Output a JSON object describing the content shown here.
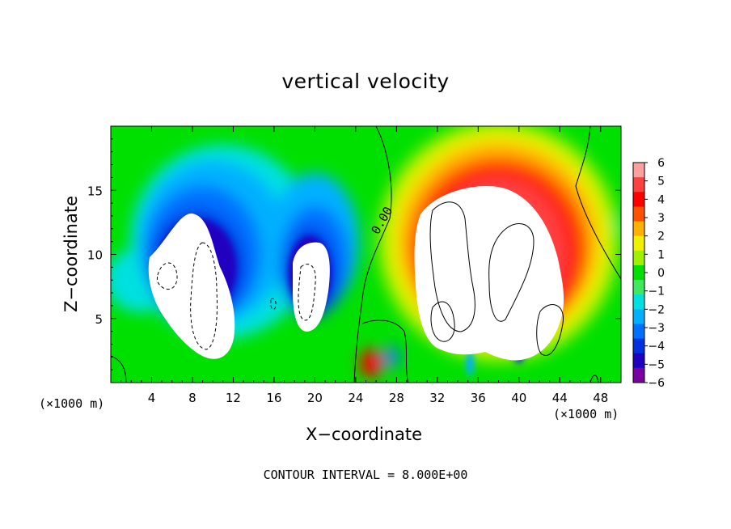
{
  "chart_data": {
    "type": "heatmap",
    "title": "vertical velocity",
    "xlabel": "X−coordinate",
    "ylabel": "Z−coordinate",
    "x_unit_left": "(×1000 m)",
    "x_unit_right": "(×1000 m)",
    "xlim": [
      0,
      50
    ],
    "ylim": [
      0,
      20
    ],
    "x_ticks": [
      4,
      8,
      12,
      16,
      20,
      24,
      28,
      32,
      36,
      40,
      44,
      48
    ],
    "y_ticks": [
      5,
      10,
      15
    ],
    "colorbar": {
      "levels": [
        -6,
        -5,
        -4,
        -3,
        -2,
        -1,
        0,
        1,
        2,
        3,
        4,
        5,
        6
      ],
      "labels": [
        "6",
        "5",
        "4",
        "3",
        "2",
        "1",
        "0",
        "−1",
        "−2",
        "−3",
        "−4",
        "−5",
        "−6"
      ]
    },
    "contour_label": "0.00",
    "contour_note": "CONTOUR INTERVAL = 8.000E+00",
    "features": [
      {
        "kind": "downdraft",
        "x": 8,
        "z": 9,
        "value": -9
      },
      {
        "kind": "downdraft",
        "x": 19,
        "z": 8,
        "value": -8
      },
      {
        "kind": "updraft",
        "x": 38,
        "z": 10,
        "value": 10
      },
      {
        "kind": "updraft",
        "x": 44,
        "z": 5,
        "value": 7
      },
      {
        "kind": "updraft",
        "x": 25.5,
        "z": 1.5,
        "value": 5
      },
      {
        "kind": "downdraft",
        "x": 40,
        "z": 3,
        "value": -5
      }
    ],
    "grid": false,
    "legend_position": "right"
  },
  "colors": {
    "scale": [
      "#7a00a0",
      "#2000c0",
      "#0030e0",
      "#0070ff",
      "#00b0ff",
      "#00e0e0",
      "#40e860",
      "#00e000",
      "#a0f000",
      "#f0f000",
      "#ffb000",
      "#ff5000",
      "#ff0000",
      "#ff4040",
      "#ffa0a0"
    ]
  }
}
